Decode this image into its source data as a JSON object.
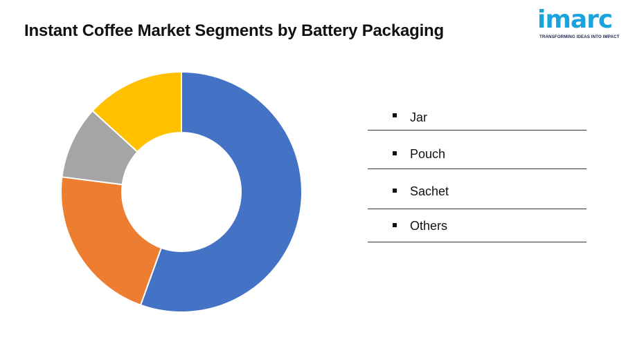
{
  "chart_data": {
    "type": "donut",
    "title": "Instant Coffee Market Segments by Battery Packaging",
    "categories": [
      "Jar",
      "Pouch",
      "Sachet",
      "Others"
    ],
    "values": [
      55.5,
      21.5,
      9.8,
      13.2
    ],
    "colors": [
      "#4472c4",
      "#ed7d31",
      "#a5a5a5",
      "#ffc000"
    ],
    "legend": "right"
  },
  "logo": {
    "brand": "imarc",
    "tagline": "TRANSFORMING IDEAS INTO IMPACT"
  }
}
